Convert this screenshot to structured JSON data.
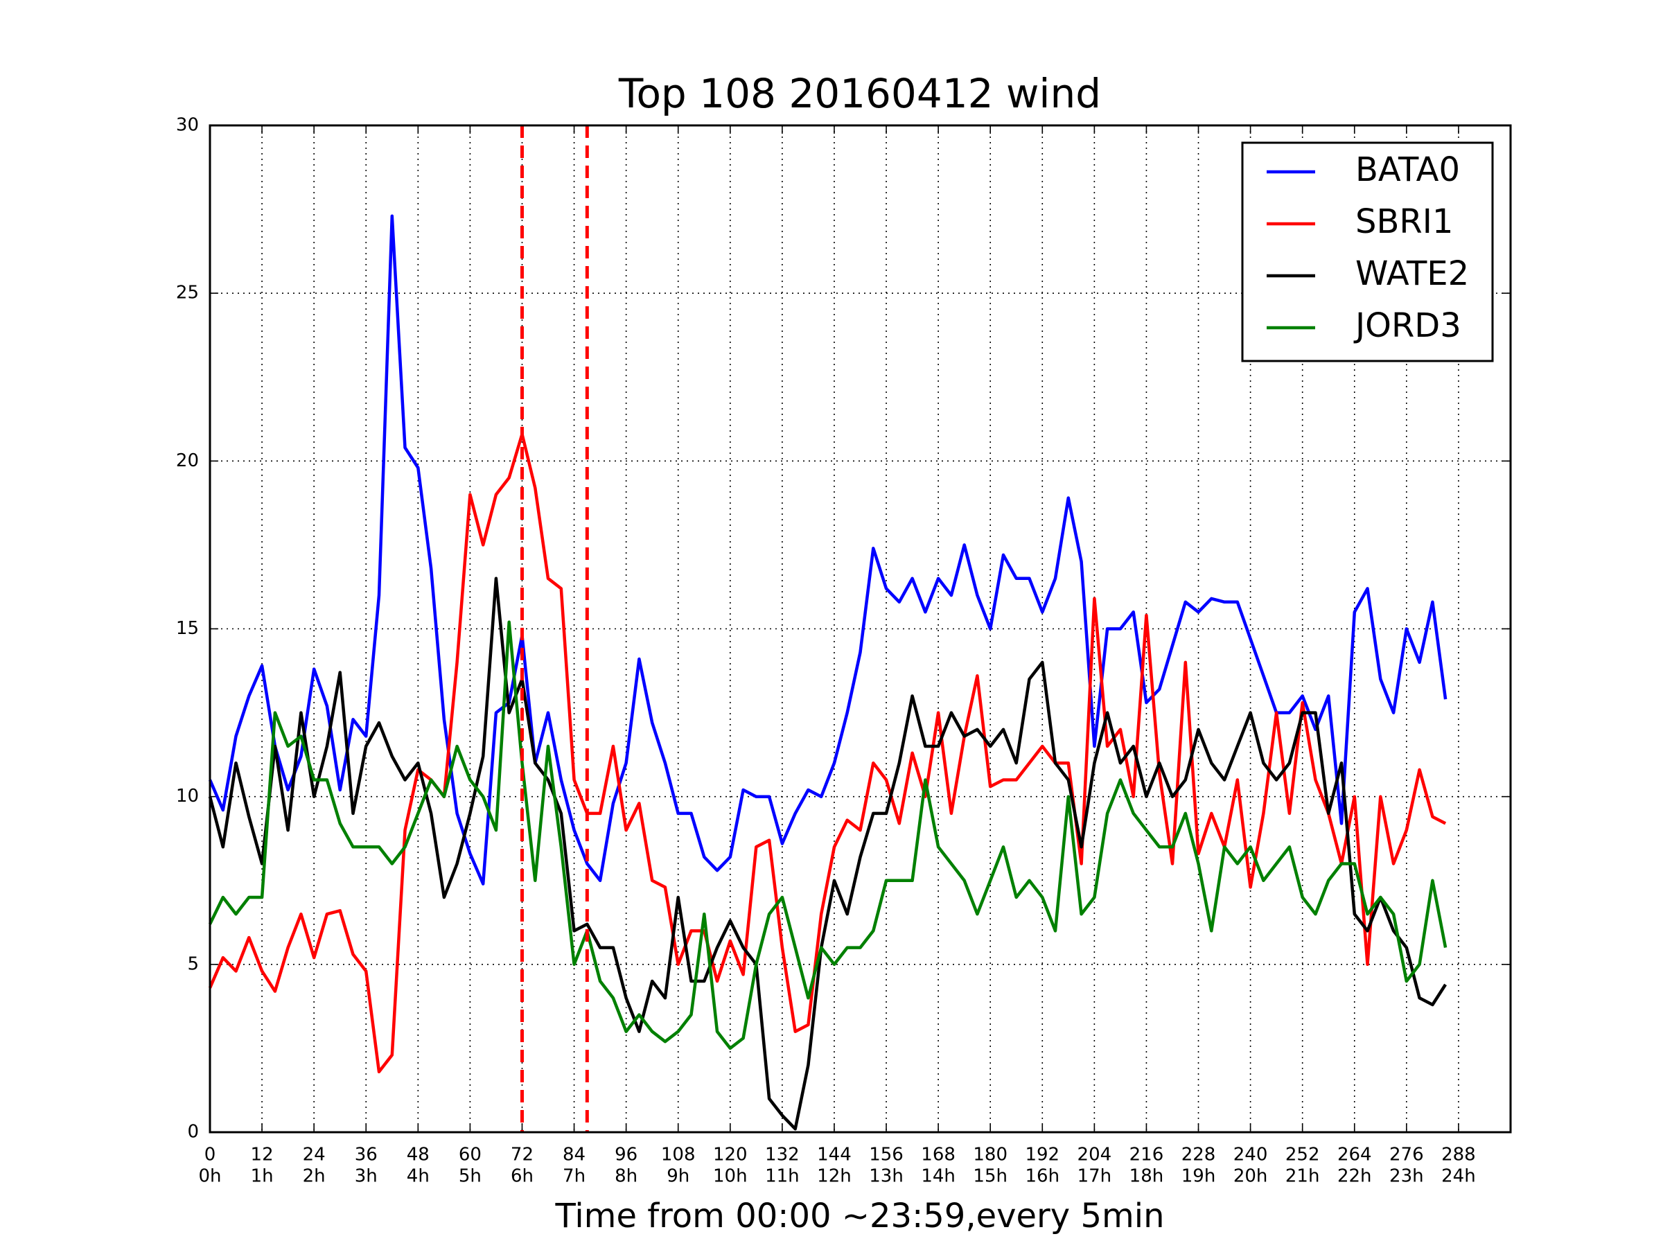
{
  "chart_data": {
    "type": "line",
    "title": "Top 108 20160412 wind",
    "x_label": "Time from 00:00 ~23:59,every 5min",
    "xlim": [
      0,
      300
    ],
    "ylim": [
      0,
      30
    ],
    "xticks": [
      0,
      12,
      24,
      36,
      48,
      60,
      72,
      84,
      96,
      108,
      120,
      132,
      144,
      156,
      168,
      180,
      192,
      204,
      216,
      228,
      240,
      252,
      264,
      276,
      288
    ],
    "xtick_hours": [
      "0h",
      "1h",
      "2h",
      "3h",
      "4h",
      "5h",
      "6h",
      "7h",
      "8h",
      "9h",
      "10h",
      "11h",
      "12h",
      "13h",
      "14h",
      "15h",
      "16h",
      "17h",
      "18h",
      "19h",
      "20h",
      "21h",
      "22h",
      "23h",
      "24h"
    ],
    "yticks": [
      0,
      5,
      10,
      15,
      20,
      25,
      30
    ],
    "grid": true,
    "legend": "upper right",
    "vlines": [
      {
        "x": 72,
        "color": "#ff0000"
      },
      {
        "x": 87,
        "color": "#ff0000"
      }
    ],
    "x": [
      0,
      3,
      6,
      9,
      12,
      15,
      18,
      21,
      24,
      27,
      30,
      33,
      36,
      39,
      42,
      45,
      48,
      51,
      54,
      57,
      60,
      63,
      66,
      69,
      72,
      75,
      78,
      81,
      84,
      87,
      90,
      93,
      96,
      99,
      102,
      105,
      108,
      111,
      114,
      117,
      120,
      123,
      126,
      129,
      132,
      135,
      138,
      141,
      144,
      147,
      150,
      153,
      156,
      159,
      162,
      165,
      168,
      171,
      174,
      177,
      180,
      183,
      186,
      189,
      192,
      195,
      198,
      201,
      204,
      207,
      210,
      213,
      216,
      219,
      222,
      225,
      228,
      231,
      234,
      237,
      240,
      243,
      246,
      249,
      252,
      255,
      258,
      261,
      264,
      267,
      270,
      273,
      276,
      279,
      282,
      285
    ],
    "series": [
      {
        "name": "BATA0",
        "color": "#0000ff",
        "values": [
          10.5,
          9.6,
          11.8,
          13,
          13.9,
          11.5,
          10.2,
          11.2,
          13.8,
          12.7,
          10.2,
          12.3,
          11.8,
          16,
          27.3,
          20.4,
          19.8,
          16.8,
          12.3,
          9.5,
          8.3,
          7.4,
          12.5,
          12.8,
          14.8,
          11,
          12.5,
          10.5,
          9,
          8,
          7.5,
          9.8,
          11,
          14.1,
          12.2,
          11,
          9.5,
          9.5,
          8.2,
          7.8,
          8.2,
          10.2,
          10,
          10,
          8.6,
          9.5,
          10.2,
          10,
          11,
          12.5,
          14.3,
          17.4,
          16.2,
          15.8,
          16.5,
          15.5,
          16.5,
          16,
          17.5,
          16,
          15,
          17.2,
          16.5,
          16.5,
          15.5,
          16.5,
          18.9,
          17,
          11.5,
          15,
          15,
          15.5,
          12.8,
          13.2,
          14.5,
          15.8,
          15.5,
          15.9,
          15.8,
          15.8,
          14.7,
          13.6,
          12.5,
          12.5,
          13,
          12,
          13,
          9.2,
          15.5,
          16.2,
          13.5,
          12.5,
          15,
          14,
          15.8,
          12.9
        ]
      },
      {
        "name": "SBRI1",
        "color": "#ff0000",
        "values": [
          4.3,
          5.2,
          4.8,
          5.8,
          4.8,
          4.2,
          5.5,
          6.5,
          5.2,
          6.5,
          6.6,
          5.3,
          4.8,
          1.8,
          2.3,
          9,
          10.8,
          10.5,
          10,
          14,
          19,
          17.5,
          19,
          19.5,
          20.8,
          19.2,
          16.5,
          16.2,
          10.5,
          9.5,
          9.5,
          11.5,
          9,
          9.8,
          7.5,
          7.3,
          5,
          6,
          6,
          4.5,
          5.7,
          4.7,
          8.5,
          8.7,
          5.5,
          3,
          3.2,
          6.5,
          8.5,
          9.3,
          9,
          11,
          10.5,
          9.2,
          11.3,
          10,
          12.5,
          9.5,
          11.8,
          13.6,
          10.3,
          10.5,
          10.5,
          11,
          11.5,
          11,
          11,
          8,
          15.9,
          11.5,
          12,
          10,
          15.4,
          10.7,
          8,
          14,
          8.3,
          9.5,
          8.5,
          10.5,
          7.3,
          9.5,
          12.5,
          9.5,
          12.8,
          10.5,
          9.5,
          8,
          10,
          5,
          10,
          8,
          9,
          10.8,
          9.4,
          9.2
        ]
      },
      {
        "name": "WATE2",
        "color": "#000000",
        "values": [
          10,
          8.5,
          11,
          9.4,
          8,
          11.5,
          9,
          12.5,
          10,
          11.5,
          13.7,
          9.5,
          11.5,
          12.2,
          11.2,
          10.5,
          11,
          9.5,
          7,
          8,
          9.5,
          11.2,
          16.5,
          12.5,
          13.5,
          11,
          10.5,
          9.5,
          6,
          6.2,
          5.5,
          5.5,
          4,
          3,
          4.5,
          4,
          7,
          4.5,
          4.5,
          5.5,
          6.3,
          5.5,
          5,
          1,
          0.5,
          0.1,
          2,
          5.5,
          7.5,
          6.5,
          8.2,
          9.5,
          9.5,
          11,
          13,
          11.5,
          11.5,
          12.5,
          11.8,
          12,
          11.5,
          12,
          11,
          13.5,
          14,
          11,
          10.5,
          8.5,
          11,
          12.5,
          11,
          11.5,
          10,
          11,
          10,
          10.5,
          12,
          11,
          10.5,
          11.5,
          12.5,
          11,
          10.5,
          11,
          12.5,
          12.5,
          9.5,
          11,
          6.5,
          6,
          7,
          6,
          5.5,
          4,
          3.8,
          4.4
        ]
      },
      {
        "name": "JORD3",
        "color": "#008000",
        "values": [
          6.2,
          7,
          6.5,
          7,
          7,
          12.5,
          11.5,
          11.8,
          10.5,
          10.5,
          9.2,
          8.5,
          8.5,
          8.5,
          8,
          8.5,
          9.5,
          10.5,
          10,
          11.5,
          10.5,
          10,
          9,
          15.2,
          11,
          7.5,
          11.5,
          8.5,
          5,
          6,
          4.5,
          4,
          3,
          3.5,
          3,
          2.7,
          3,
          3.5,
          6.5,
          3,
          2.5,
          2.8,
          5,
          6.5,
          7,
          5.5,
          4,
          5.5,
          5,
          5.5,
          5.5,
          6,
          7.5,
          7.5,
          7.5,
          10.5,
          8.5,
          8,
          7.5,
          6.5,
          7.5,
          8.5,
          7,
          7.5,
          7,
          6,
          10,
          6.5,
          7,
          9.5,
          10.5,
          9.5,
          9,
          8.5,
          8.5,
          9.5,
          8,
          6,
          8.5,
          8,
          8.5,
          7.5,
          8,
          8.5,
          7,
          6.5,
          7.5,
          8,
          8,
          6.5,
          7,
          6.5,
          4.5,
          5,
          7.5,
          5.5
        ]
      }
    ]
  }
}
